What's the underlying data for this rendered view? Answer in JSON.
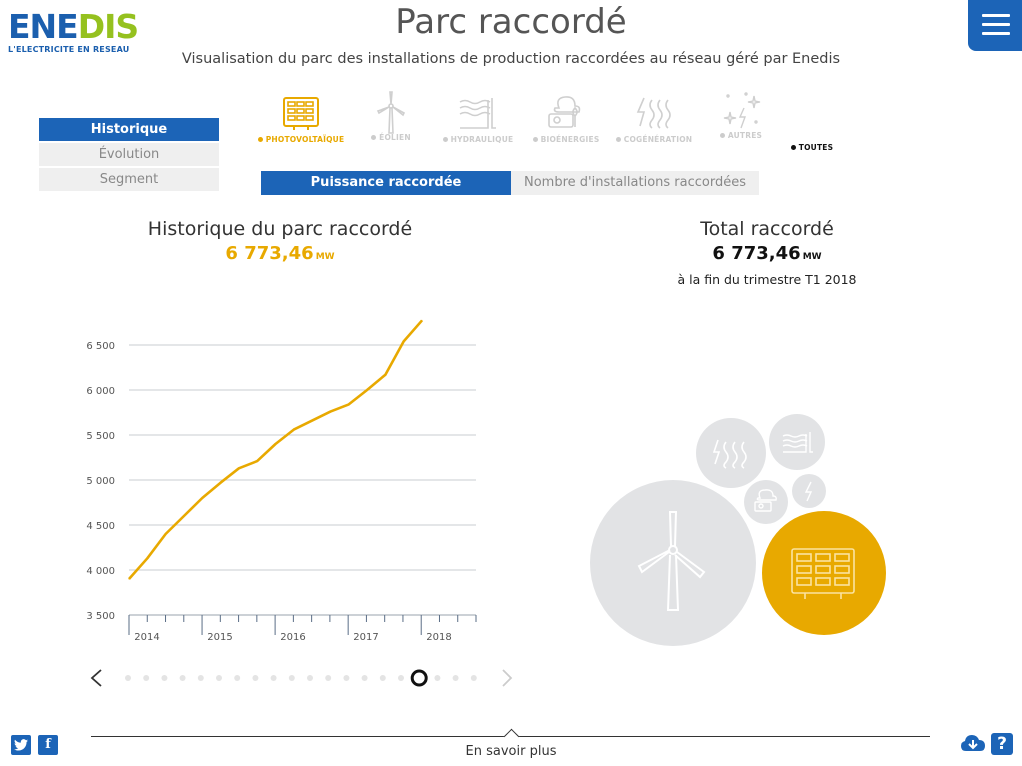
{
  "brand": {
    "name_part1": "ENE",
    "name_part2": "DIS",
    "tagline": "L'ELECTRICITE EN RESEAU"
  },
  "header": {
    "title": "Parc raccordé",
    "subtitle": "Visualisation du parc des installations de production raccordées au réseau géré par Enedis"
  },
  "side_tabs": [
    {
      "label": "Historique",
      "active": true
    },
    {
      "label": "Évolution",
      "active": false
    },
    {
      "label": "Segment",
      "active": false
    }
  ],
  "energy_types": [
    {
      "label": "PHOTOVOLTAÏQUE",
      "icon": "solar-panel-icon",
      "selected": true
    },
    {
      "label": "ÉOLIEN",
      "icon": "wind-turbine-icon",
      "selected": false
    },
    {
      "label": "HYDRAULIQUE",
      "icon": "hydraulic-icon",
      "selected": false
    },
    {
      "label": "BIOÉNERGIES",
      "icon": "bioenergy-icon",
      "selected": false
    },
    {
      "label": "COGÉNÉRATION",
      "icon": "cogeneration-icon",
      "selected": false
    },
    {
      "label": "AUTRES",
      "icon": "sparkle-icon",
      "selected": false
    },
    {
      "label": "TOUTES",
      "icon": "",
      "selected": false
    }
  ],
  "metric_tabs": [
    {
      "label": "Puissance raccordée",
      "active": true
    },
    {
      "label": "Nombre d'installations raccordées",
      "active": false
    }
  ],
  "history": {
    "title": "Historique du parc raccordé",
    "value": "6 773,46",
    "unit": "MW"
  },
  "total": {
    "title": "Total raccordé",
    "value": "6 773,46",
    "unit": "MW",
    "note": "à la fin du trimestre T1 2018"
  },
  "chart_data": {
    "type": "line",
    "title": "Historique du parc raccordé",
    "xlabel": "",
    "ylabel": "",
    "ylim": [
      3500,
      6800
    ],
    "yticks": [
      3500,
      4000,
      4500,
      5000,
      5500,
      6000,
      6500
    ],
    "ytick_labels": [
      "3 500",
      "4 000",
      "4 500",
      "5 000",
      "5 500",
      "6 000",
      "6 500"
    ],
    "xtick_labels": [
      "2014",
      "2015",
      "2016",
      "2017",
      "2018"
    ],
    "quarters": [
      "2014-T1",
      "2014-T2",
      "2014-T3",
      "2014-T4",
      "2015-T1",
      "2015-T2",
      "2015-T3",
      "2015-T4",
      "2016-T1",
      "2016-T2",
      "2016-T3",
      "2016-T4",
      "2017-T1",
      "2017-T2",
      "2017-T3",
      "2017-T4",
      "2018-T1"
    ],
    "series": [
      {
        "values": [
          3900,
          4130,
          4400,
          4600,
          4800,
          4970,
          5130,
          5210,
          5400,
          5560,
          5660,
          5760,
          5840,
          6000,
          6170,
          6540,
          6773
        ],
        "color": "#e8a900"
      }
    ],
    "grid": true
  },
  "bubbles": [
    {
      "name": "cogeneration",
      "icon": "cogeneration-icon",
      "color": "#e2e3e5"
    },
    {
      "name": "hydraulique",
      "icon": "hydraulic-icon",
      "color": "#e2e3e5"
    },
    {
      "name": "bioenergies",
      "icon": "bioenergy-icon",
      "color": "#e2e3e5"
    },
    {
      "name": "autres",
      "icon": "sparkle-icon",
      "color": "#e2e3e5"
    },
    {
      "name": "eolien",
      "icon": "wind-turbine-icon",
      "color": "#e2e3e5"
    },
    {
      "name": "photovoltaique",
      "icon": "solar-panel-icon",
      "color": "#e8a900"
    }
  ],
  "pager": {
    "count": 20,
    "active_index": 16
  },
  "footer": {
    "link_label": "En savoir plus"
  },
  "colors": {
    "brand_blue": "#1c64b7",
    "accent": "#e8a900",
    "inactive": "#efefef"
  }
}
